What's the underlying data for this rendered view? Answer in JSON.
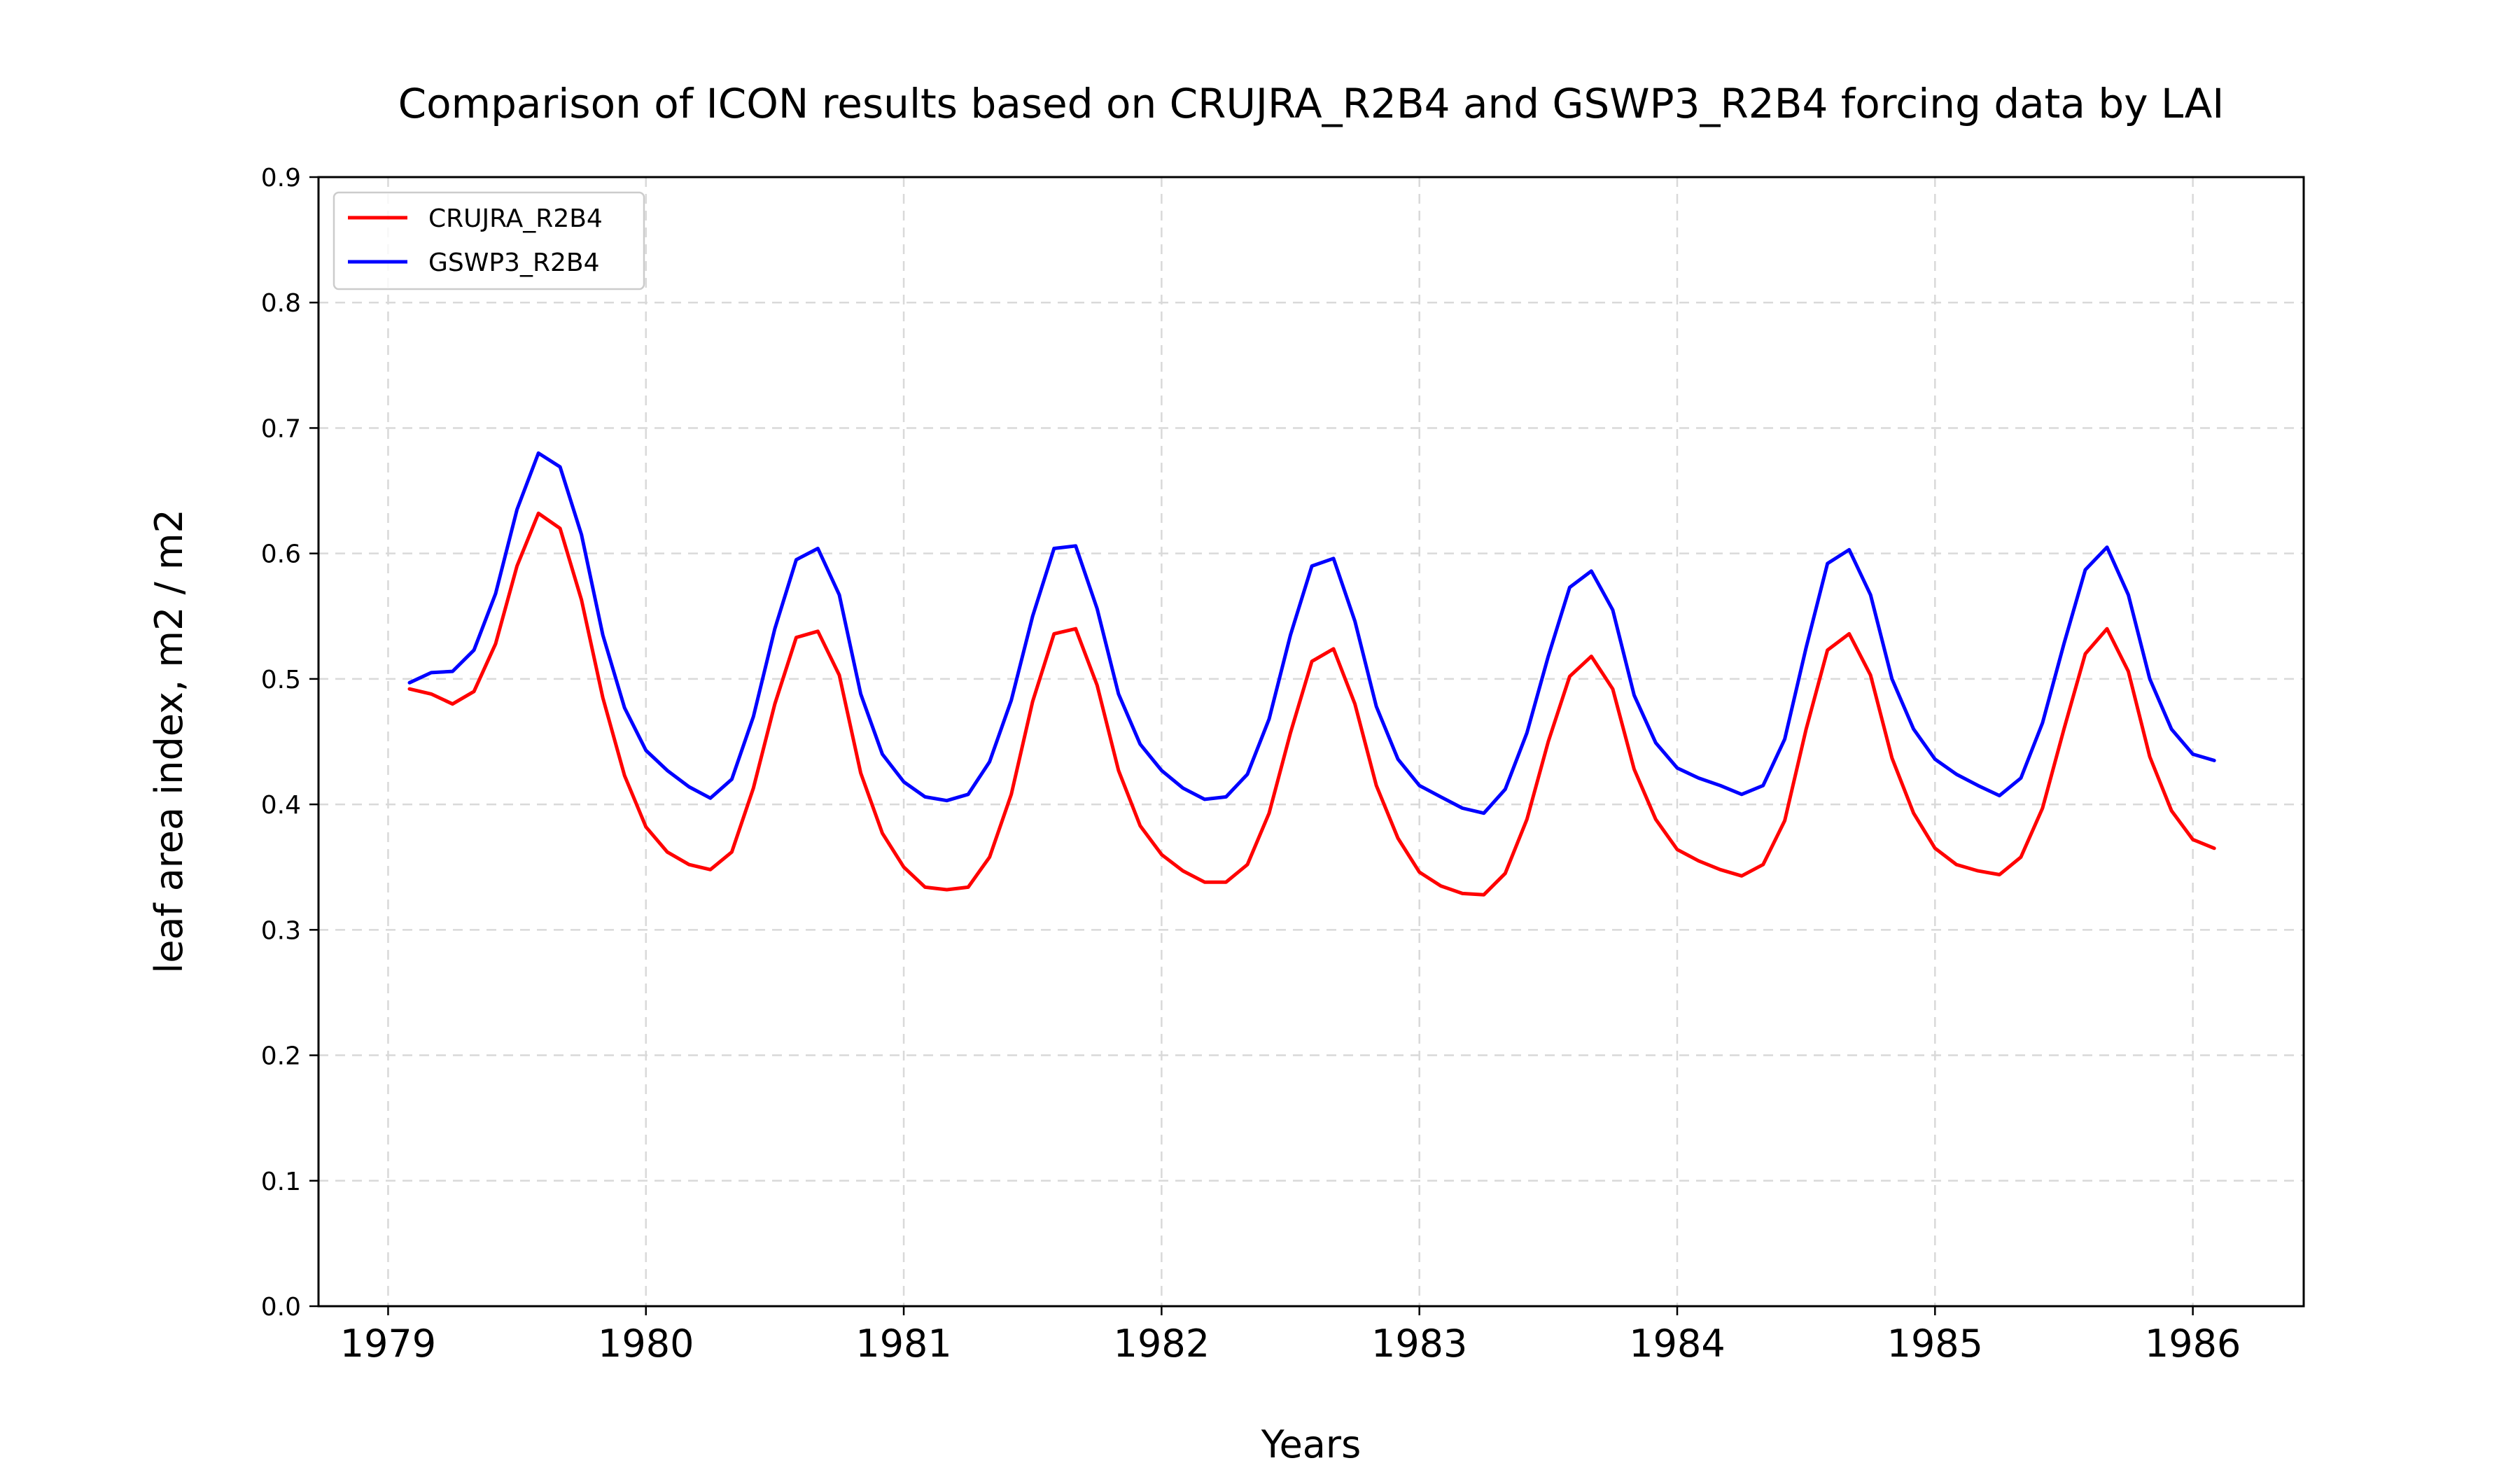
{
  "chart_data": {
    "type": "line",
    "title": "Comparison of ICON results based on CRUJRA_R2B4 and GSWP3_R2B4 forcing data by LAI",
    "xlabel": "Years",
    "ylabel": "leaf area index, m2 / m2",
    "xlim": [
      1978.73,
      1986.43
    ],
    "ylim": [
      0,
      0.9
    ],
    "xticks": [
      "1979",
      "1980",
      "1981",
      "1982",
      "1983",
      "1984",
      "1985",
      "1986"
    ],
    "yticks": [
      "0.0",
      "0.1",
      "0.2",
      "0.3",
      "0.4",
      "0.5",
      "0.6",
      "0.7",
      "0.8",
      "0.9"
    ],
    "grid": true,
    "legend_position": "top-left",
    "x": [
      1979.083,
      1979.167,
      1979.25,
      1979.333,
      1979.417,
      1979.5,
      1979.583,
      1979.667,
      1979.75,
      1979.833,
      1979.917,
      1980.0,
      1980.083,
      1980.167,
      1980.25,
      1980.333,
      1980.417,
      1980.5,
      1980.583,
      1980.667,
      1980.75,
      1980.833,
      1980.917,
      1981.0,
      1981.083,
      1981.167,
      1981.25,
      1981.333,
      1981.417,
      1981.5,
      1981.583,
      1981.667,
      1981.75,
      1981.833,
      1981.917,
      1982.0,
      1982.083,
      1982.167,
      1982.25,
      1982.333,
      1982.417,
      1982.5,
      1982.583,
      1982.667,
      1982.75,
      1982.833,
      1982.917,
      1983.0,
      1983.083,
      1983.167,
      1983.25,
      1983.333,
      1983.417,
      1983.5,
      1983.583,
      1983.667,
      1983.75,
      1983.833,
      1983.917,
      1984.0,
      1984.083,
      1984.167,
      1984.25,
      1984.333,
      1984.417,
      1984.5,
      1984.583,
      1984.667,
      1984.75,
      1984.833,
      1984.917,
      1985.0,
      1985.083,
      1985.167,
      1985.25,
      1985.333,
      1985.417,
      1985.5,
      1985.583,
      1985.667,
      1985.75,
      1985.833,
      1985.917,
      1986.0,
      1986.083
    ],
    "series": [
      {
        "name": "CRUJRA_R2B4",
        "color": "#ff0000",
        "values": [
          0.492,
          0.488,
          0.48,
          0.49,
          0.528,
          0.59,
          0.632,
          0.62,
          0.563,
          0.485,
          0.423,
          0.382,
          0.362,
          0.352,
          0.348,
          0.362,
          0.413,
          0.48,
          0.533,
          0.538,
          0.503,
          0.425,
          0.377,
          0.35,
          0.334,
          0.332,
          0.334,
          0.358,
          0.408,
          0.482,
          0.536,
          0.54,
          0.495,
          0.427,
          0.383,
          0.36,
          0.347,
          0.338,
          0.338,
          0.352,
          0.393,
          0.457,
          0.514,
          0.524,
          0.48,
          0.415,
          0.373,
          0.346,
          0.335,
          0.329,
          0.328,
          0.345,
          0.388,
          0.45,
          0.502,
          0.518,
          0.492,
          0.428,
          0.388,
          0.364,
          0.355,
          0.348,
          0.343,
          0.352,
          0.387,
          0.46,
          0.523,
          0.536,
          0.503,
          0.437,
          0.393,
          0.365,
          0.352,
          0.347,
          0.344,
          0.358,
          0.397,
          0.46,
          0.52,
          0.54,
          0.506,
          0.438,
          0.395,
          0.372,
          0.365
        ]
      },
      {
        "name": "GSWP3_R2B4",
        "color": "#0000ff",
        "values": [
          0.497,
          0.505,
          0.506,
          0.523,
          0.568,
          0.635,
          0.68,
          0.669,
          0.615,
          0.535,
          0.477,
          0.443,
          0.427,
          0.414,
          0.405,
          0.42,
          0.47,
          0.54,
          0.595,
          0.604,
          0.567,
          0.488,
          0.44,
          0.418,
          0.406,
          0.403,
          0.408,
          0.434,
          0.483,
          0.55,
          0.604,
          0.606,
          0.556,
          0.488,
          0.448,
          0.427,
          0.413,
          0.404,
          0.406,
          0.424,
          0.468,
          0.535,
          0.59,
          0.596,
          0.546,
          0.478,
          0.436,
          0.415,
          0.406,
          0.397,
          0.393,
          0.412,
          0.457,
          0.518,
          0.573,
          0.586,
          0.555,
          0.487,
          0.449,
          0.429,
          0.421,
          0.415,
          0.408,
          0.415,
          0.452,
          0.525,
          0.592,
          0.603,
          0.567,
          0.5,
          0.46,
          0.436,
          0.424,
          0.415,
          0.407,
          0.421,
          0.465,
          0.528,
          0.587,
          0.605,
          0.567,
          0.5,
          0.46,
          0.44,
          0.435
        ]
      }
    ]
  }
}
